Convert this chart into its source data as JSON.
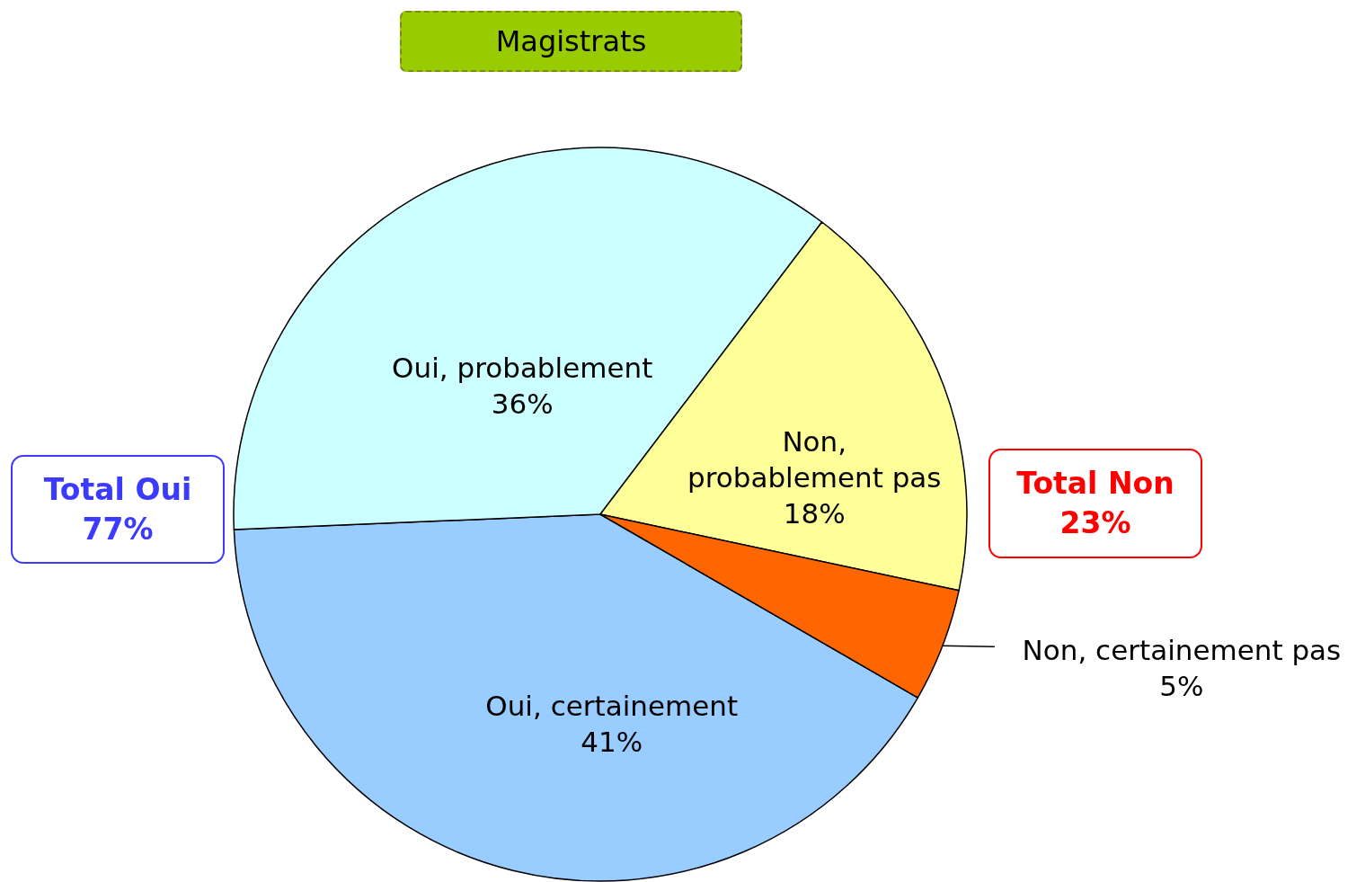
{
  "chart_data": {
    "type": "pie",
    "title": "Magistrats",
    "categories": [
      "Oui, certainement",
      "Oui, probablement",
      "Non, probablement pas",
      "Non, certainement pas"
    ],
    "values": [
      41,
      36,
      18,
      5
    ],
    "colors": [
      "#99ccff",
      "#ccffff",
      "#ffff99",
      "#ff6600"
    ],
    "value_labels": [
      "41%",
      "36%",
      "18%",
      "5%"
    ],
    "annotations": [
      "Total Oui\n77%",
      "Total Non\n23%"
    ]
  }
}
